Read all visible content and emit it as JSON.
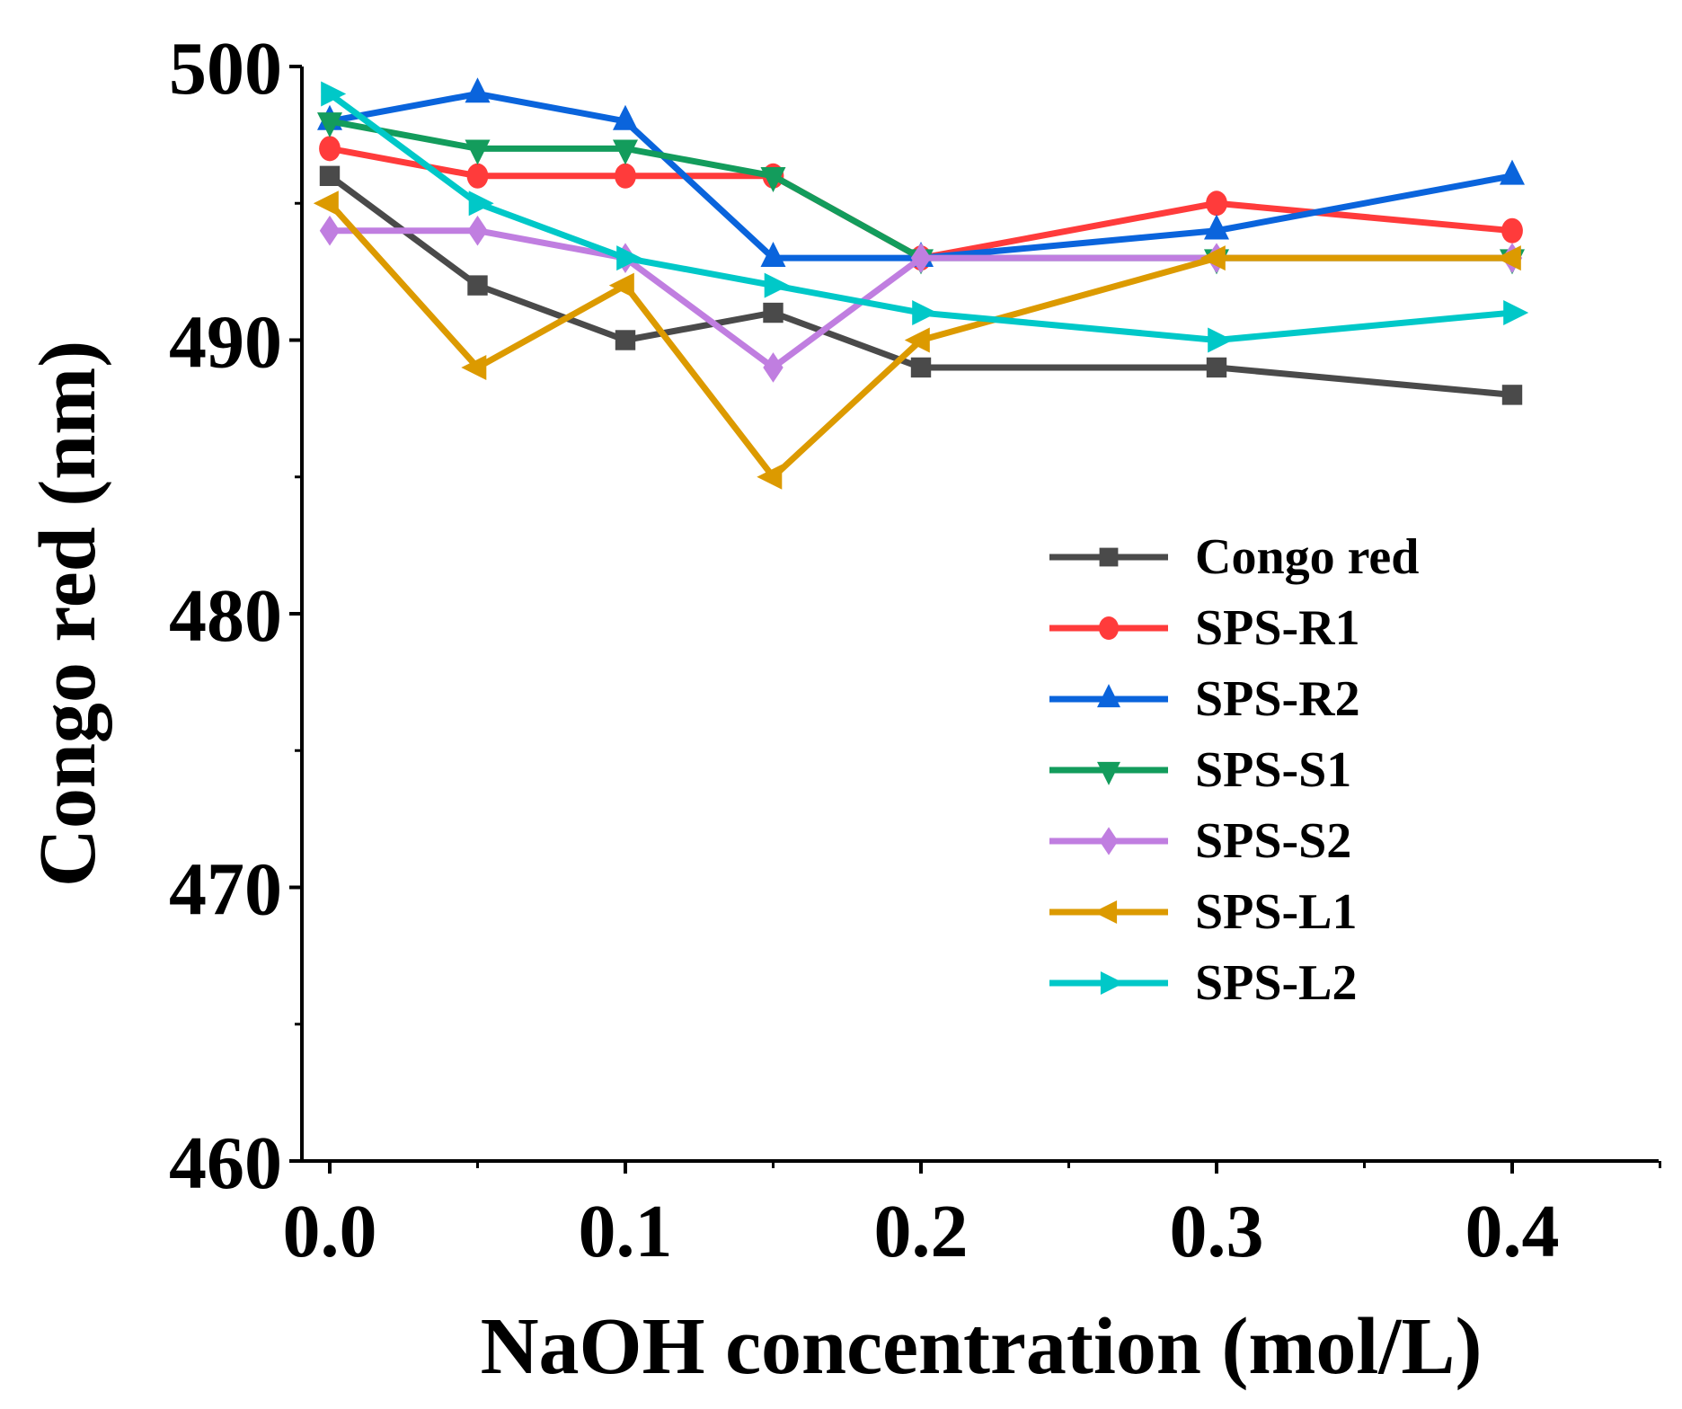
{
  "chart_data": {
    "type": "line",
    "title": "",
    "xlabel": "NaOH concentration (mol/L)",
    "ylabel": "Congo red (nm)",
    "x": [
      0.0,
      0.05,
      0.1,
      0.15,
      0.2,
      0.3,
      0.4
    ],
    "xlim": [
      -0.01,
      0.45
    ],
    "ylim": [
      460,
      500
    ],
    "xticks": [
      "0.0",
      "0.1",
      "0.2",
      "0.3",
      "0.4"
    ],
    "xtick_values": [
      0,
      0.1,
      0.2,
      0.3,
      0.4
    ],
    "yticks": [
      "460",
      "470",
      "480",
      "490",
      "500"
    ],
    "ytick_values": [
      460,
      470,
      480,
      490,
      500
    ],
    "grid": false,
    "legend_position": "center-right",
    "series": [
      {
        "name": "Congo red",
        "color": "#4a4a4a",
        "marker": "square",
        "values": [
          496,
          492,
          490,
          491,
          489,
          489,
          488
        ]
      },
      {
        "name": "SPS-R1",
        "color": "#ff3b3b",
        "marker": "circle",
        "values": [
          497,
          496,
          496,
          496,
          493,
          495,
          494
        ]
      },
      {
        "name": "SPS-R2",
        "color": "#0a64dc",
        "marker": "triangle-up",
        "values": [
          498,
          499,
          498,
          493,
          493,
          494,
          496
        ]
      },
      {
        "name": "SPS-S1",
        "color": "#139c5c",
        "marker": "triangle-down",
        "values": [
          498,
          497,
          497,
          496,
          493,
          493,
          493
        ]
      },
      {
        "name": "SPS-S2",
        "color": "#c07ee0",
        "marker": "diamond",
        "values": [
          494,
          494,
          493,
          489,
          493,
          493,
          493
        ]
      },
      {
        "name": "SPS-L1",
        "color": "#dc9a00",
        "marker": "triangle-left",
        "values": [
          495,
          489,
          492,
          485,
          490,
          493,
          493
        ]
      },
      {
        "name": "SPS-L2",
        "color": "#00c8c8",
        "marker": "triangle-right",
        "values": [
          499,
          495,
          493,
          492,
          491,
          490,
          491
        ]
      }
    ]
  }
}
